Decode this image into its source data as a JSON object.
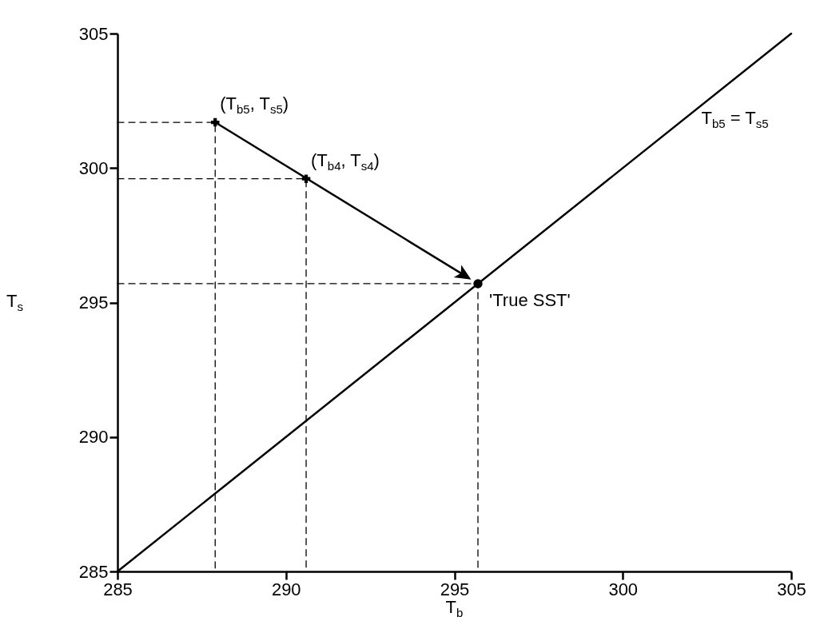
{
  "chart_data": {
    "type": "line",
    "xlabel": "T$_{b}$",
    "ylabel": "T$_{s}$",
    "xlim": [
      285,
      305
    ],
    "ylim": [
      285,
      305
    ],
    "xticks": [
      285,
      290,
      295,
      300,
      305
    ],
    "yticks": [
      285,
      290,
      295,
      300,
      305
    ],
    "grid": false,
    "series": [
      {
        "name": "T$_{b5}$ = T$_{s5}$",
        "color": "#000000",
        "x": [
          285,
          305
        ],
        "values": [
          285,
          305
        ]
      },
      {
        "type": "scatter",
        "marker": "cross",
        "color": "#000000",
        "x": [
          287.9,
          290.6
        ],
        "values": [
          301.7,
          299.6
        ]
      },
      {
        "type": "scatter",
        "marker": "circle",
        "color": "#000000",
        "x": [
          295.7
        ],
        "values": [
          295.7
        ]
      },
      {
        "type": "line",
        "line_style": "dashed",
        "color": "#000000",
        "x": [
          285,
          287.9,
          287.9
        ],
        "values": [
          301.7,
          301.7,
          285
        ]
      },
      {
        "type": "line",
        "line_style": "dashed",
        "color": "#000000",
        "x": [
          285,
          290.6,
          290.6
        ],
        "values": [
          299.6,
          299.6,
          285
        ]
      },
      {
        "type": "line",
        "line_style": "dashed",
        "color": "#000000",
        "x": [
          285,
          295.7,
          295.7
        ],
        "values": [
          295.7,
          295.7,
          285
        ]
      }
    ],
    "annotations": [
      {
        "text": "(T$_{b5}$, T$_{s5}$)",
        "x": 287.9,
        "y": 301.7
      },
      {
        "text": "(T$_{b4}$, T$_{s4}$)",
        "x": 290.6,
        "y": 299.6
      },
      {
        "text": "'True SST'",
        "x": 295.7,
        "y": 295.7
      }
    ]
  }
}
